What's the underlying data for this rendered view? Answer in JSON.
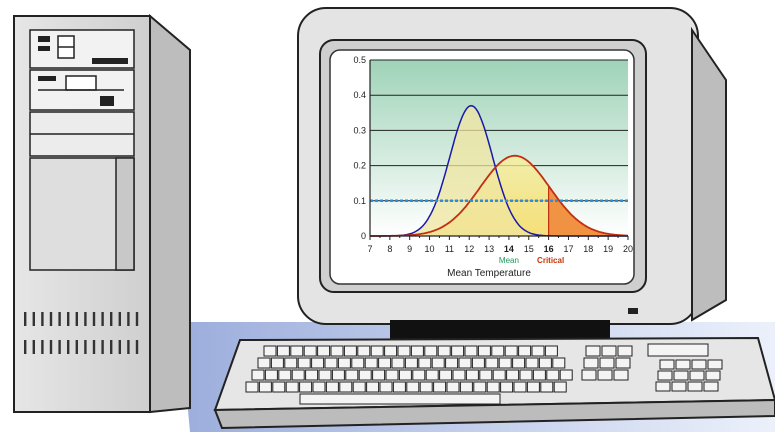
{
  "colors": {
    "screen_bg_top": "#9fd3b8",
    "screen_bg_bottom": "#ffffff",
    "curve_narrow": "#1a1aa8",
    "curve_wide": "#c03010",
    "fill_yellow": "#f5e36a",
    "fill_critical": "#f08a3c",
    "threshold_line": "#2a8fd8",
    "mean_label": "#1a9a5a",
    "critical_label": "#d03000"
  },
  "chart_data": {
    "type": "line",
    "xlabel": "Mean Temperature",
    "ylabel": "",
    "xlim": [
      7,
      20
    ],
    "ylim": [
      0,
      0.5
    ],
    "x_ticks": [
      "7",
      "8",
      "9",
      "10",
      "11",
      "12",
      "13",
      "14",
      "15",
      "16",
      "17",
      "18",
      "19",
      "20"
    ],
    "y_ticks": [
      "0",
      "0.1",
      "0.2",
      "0.3",
      "0.4",
      "0.5"
    ],
    "highlight_ticks": {
      "mean": "14",
      "critical": "16"
    },
    "annotations": {
      "mean": "Mean",
      "critical": "Critical"
    },
    "threshold": 0.1,
    "grid": true,
    "series": [
      {
        "mean": 12.1,
        "sd": 1.08,
        "peak": 0.37
      },
      {
        "mean": 14.3,
        "sd": 1.75,
        "peak": 0.228
      }
    ],
    "shaded_above": 16
  }
}
